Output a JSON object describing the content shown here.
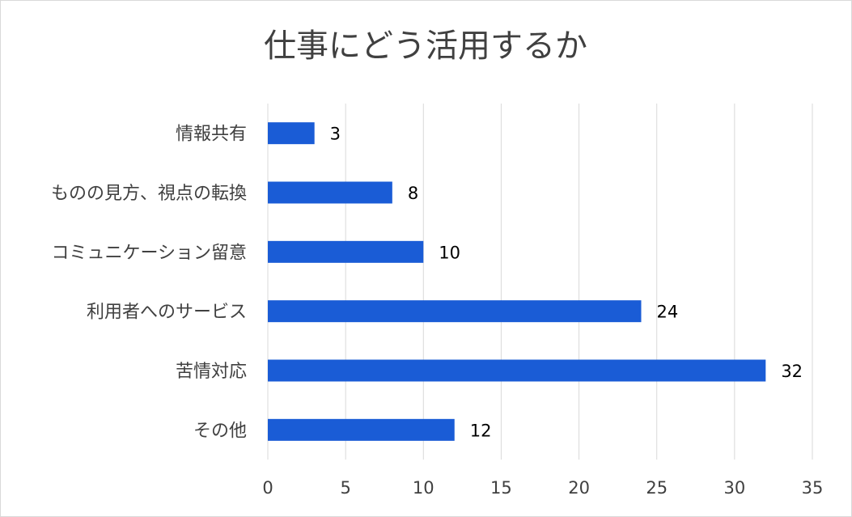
{
  "chart_data": {
    "type": "bar",
    "orientation": "horizontal",
    "title": "仕事にどう活用するか",
    "categories": [
      "情報共有",
      "ものの見方、視点の転換",
      "コミュニケーション留意",
      "利用者へのサービス",
      "苦情対応",
      "その他"
    ],
    "values": [
      3,
      8,
      10,
      24,
      32,
      12
    ],
    "xlim": [
      0,
      35
    ],
    "x_ticks": [
      0,
      5,
      10,
      15,
      20,
      25,
      30,
      35
    ],
    "grid": "vertical",
    "legend": "none",
    "bar_color": "#1a5cd6",
    "data_labels": true
  }
}
